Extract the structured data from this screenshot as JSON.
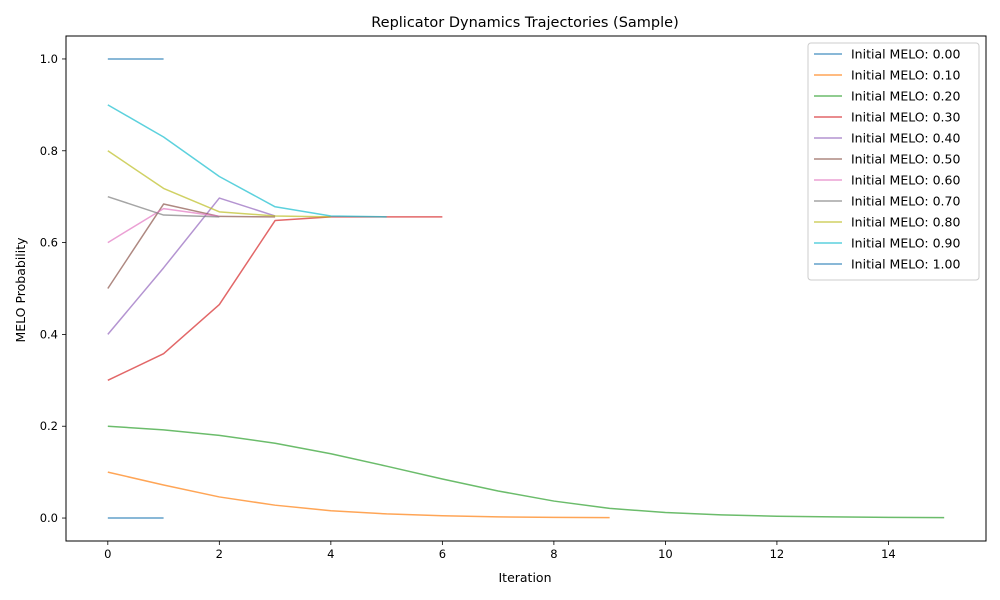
{
  "chart_data": {
    "type": "line",
    "title": "Replicator Dynamics Trajectories (Sample)",
    "xlabel": "Iteration",
    "ylabel": "MELO Probability",
    "xlim": [
      -0.75,
      15.75
    ],
    "ylim": [
      -0.05,
      1.05
    ],
    "xticks": [
      0,
      2,
      4,
      6,
      8,
      10,
      12,
      14
    ],
    "yticks": [
      0.0,
      0.2,
      0.4,
      0.6,
      0.8,
      1.0
    ],
    "xtick_labels": [
      "0",
      "2",
      "4",
      "6",
      "8",
      "10",
      "12",
      "14"
    ],
    "ytick_labels": [
      "0.0",
      "0.2",
      "0.4",
      "0.6",
      "0.8",
      "1.0"
    ],
    "grid": false,
    "legend_position": "top-right",
    "series": [
      {
        "name": "Initial MELO: 0.00",
        "color": "#1f77b4",
        "x": [
          0,
          1
        ],
        "y": [
          0.0,
          0.0
        ]
      },
      {
        "name": "Initial MELO: 0.10",
        "color": "#ff7f0e",
        "x": [
          0,
          1,
          2,
          3,
          4,
          5,
          6,
          7,
          8,
          9
        ],
        "y": [
          0.1,
          0.072,
          0.046,
          0.028,
          0.016,
          0.009,
          0.005,
          0.0025,
          0.0015,
          0.0008
        ]
      },
      {
        "name": "Initial MELO: 0.20",
        "color": "#2ca02c",
        "x": [
          0,
          1,
          2,
          3,
          4,
          5,
          6,
          7,
          8,
          9,
          10,
          11,
          12,
          13,
          14,
          15
        ],
        "y": [
          0.2,
          0.192,
          0.18,
          0.163,
          0.14,
          0.113,
          0.085,
          0.059,
          0.037,
          0.021,
          0.012,
          0.007,
          0.004,
          0.0025,
          0.0015,
          0.001
        ]
      },
      {
        "name": "Initial MELO: 0.30",
        "color": "#d62728",
        "x": [
          0,
          1,
          2,
          3,
          4,
          5,
          6
        ],
        "y": [
          0.3,
          0.358,
          0.465,
          0.648,
          0.656,
          0.656,
          0.656
        ]
      },
      {
        "name": "Initial MELO: 0.40",
        "color": "#9467bd",
        "x": [
          0,
          1,
          2,
          3
        ],
        "y": [
          0.4,
          0.545,
          0.697,
          0.658
        ]
      },
      {
        "name": "Initial MELO: 0.50",
        "color": "#8c564b",
        "x": [
          0,
          1,
          2,
          3
        ],
        "y": [
          0.5,
          0.684,
          0.657,
          0.656
        ]
      },
      {
        "name": "Initial MELO: 0.60",
        "color": "#e377c2",
        "x": [
          0,
          1,
          2
        ],
        "y": [
          0.6,
          0.674,
          0.657
        ]
      },
      {
        "name": "Initial MELO: 0.70",
        "color": "#7f7f7f",
        "x": [
          0,
          1,
          2
        ],
        "y": [
          0.7,
          0.66,
          0.656
        ]
      },
      {
        "name": "Initial MELO: 0.80",
        "color": "#bcbd22",
        "x": [
          0,
          1,
          2,
          3,
          4
        ],
        "y": [
          0.8,
          0.718,
          0.667,
          0.658,
          0.656
        ]
      },
      {
        "name": "Initial MELO: 0.90",
        "color": "#17becf",
        "x": [
          0,
          1,
          2,
          3,
          4,
          5
        ],
        "y": [
          0.9,
          0.83,
          0.744,
          0.678,
          0.658,
          0.656
        ]
      },
      {
        "name": "Initial MELO: 1.00",
        "color": "#1f77b4",
        "x": [
          0,
          1
        ],
        "y": [
          1.0,
          1.0
        ]
      }
    ]
  }
}
